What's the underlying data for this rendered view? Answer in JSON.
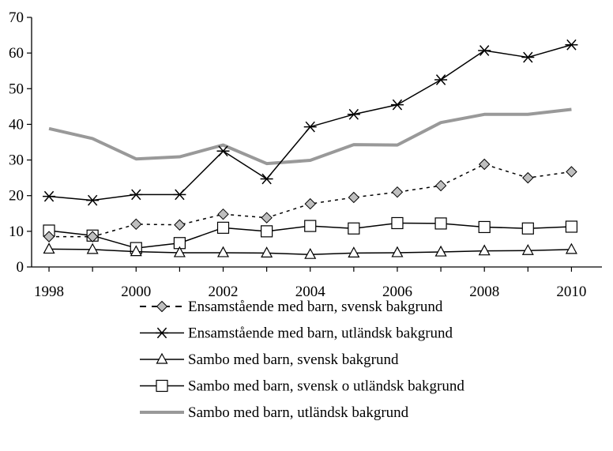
{
  "chart_data": {
    "type": "line",
    "title": "",
    "xlabel": "",
    "ylabel": "",
    "x": [
      1998,
      1999,
      2000,
      2001,
      2002,
      2003,
      2004,
      2005,
      2006,
      2007,
      2008,
      2009,
      2010
    ],
    "x_ticks": [
      "1998",
      "2000",
      "2002",
      "2004",
      "2006",
      "2008",
      "2010"
    ],
    "y_ticks": [
      "0",
      "10",
      "20",
      "30",
      "40",
      "50",
      "60",
      "70"
    ],
    "ylim": [
      0,
      70
    ],
    "grid": false,
    "legend_position": "bottom",
    "series": [
      {
        "name": "Ensamstående med barn, svensk bakgrund",
        "marker": "diamond",
        "line_style": "dashed",
        "color": "#000000",
        "marker_fill": "#bfbfbf",
        "values": [
          8.5,
          8.5,
          12.0,
          11.8,
          14.8,
          13.8,
          17.7,
          19.5,
          21.0,
          22.8,
          28.8,
          25.0,
          26.7
        ]
      },
      {
        "name": "Ensamstående med barn, utländsk bakgrund",
        "marker": "asterisk",
        "line_style": "solid",
        "color": "#000000",
        "values": [
          19.8,
          18.7,
          20.3,
          20.3,
          32.5,
          24.7,
          39.3,
          42.8,
          45.5,
          52.5,
          60.7,
          58.8,
          62.3
        ]
      },
      {
        "name": "Sambo med barn, svensk bakgrund",
        "marker": "triangle",
        "line_style": "solid",
        "color": "#000000",
        "values": [
          5.0,
          4.9,
          4.3,
          4.0,
          4.0,
          3.9,
          3.5,
          3.9,
          4.0,
          4.2,
          4.5,
          4.6,
          4.9
        ]
      },
      {
        "name": "Sambo med barn, svensk o utländsk bakgrund",
        "marker": "square",
        "line_style": "solid",
        "color": "#000000",
        "values": [
          10.2,
          8.8,
          5.3,
          6.7,
          11.0,
          10.0,
          11.5,
          10.8,
          12.3,
          12.2,
          11.2,
          10.8,
          11.3
        ]
      },
      {
        "name": "Sambo med barn, utländsk bakgrund",
        "marker": "none",
        "line_style": "solid",
        "color": "#999999",
        "values": [
          38.8,
          36.0,
          30.3,
          30.9,
          34.2,
          29.0,
          29.9,
          34.3,
          34.2,
          40.5,
          42.8,
          42.8,
          44.2
        ]
      }
    ]
  }
}
